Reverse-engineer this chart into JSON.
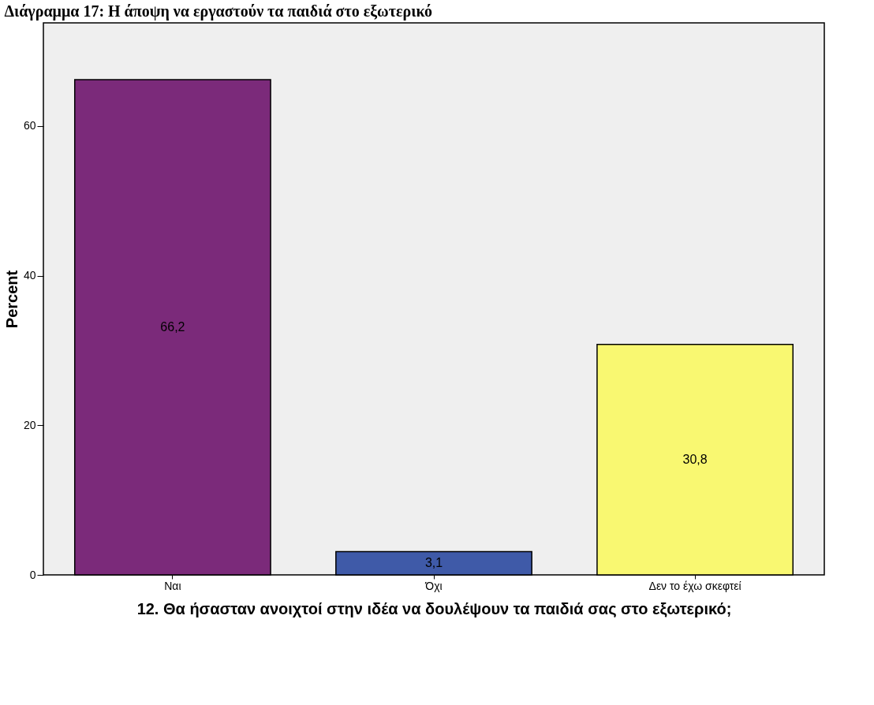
{
  "chart_data": {
    "type": "bar",
    "title": "Διάγραμμα 17: Η άποψη να εργαστούν τα παιδιά στο εξωτερικό",
    "xlabel": "12. Θα ήσασταν ανοιχτοί στην ιδέα να δουλέψουν τα παιδιά σας στο εξωτερικό;",
    "ylabel": "Percent",
    "categories": [
      "Ναι",
      "Όχι",
      "Δεν το έχω σκεφτεί"
    ],
    "values": [
      66.2,
      3.1,
      30.8
    ],
    "colors": [
      "#7b2a7a",
      "#3f5aa8",
      "#f9f871"
    ],
    "value_labels": [
      "66,2",
      "3,1",
      "30,8"
    ],
    "ylim": [
      0,
      73.8
    ],
    "yticks": [
      0,
      20,
      40,
      60
    ],
    "grid": false,
    "legend": false
  }
}
